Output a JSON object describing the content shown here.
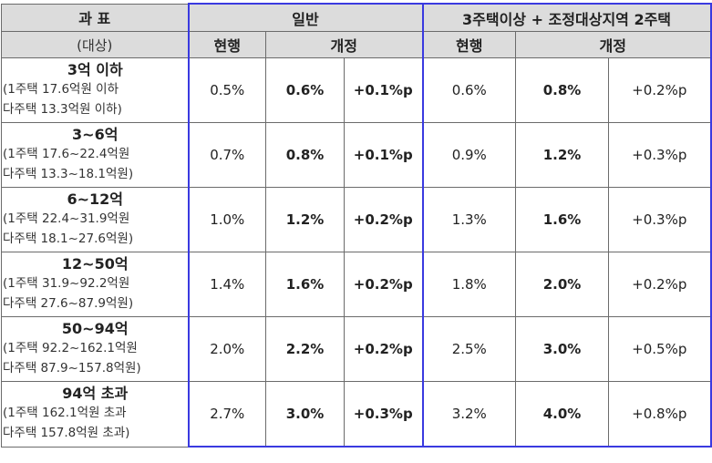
{
  "header": {
    "col_label_1": "과  표",
    "col_label_2": "(대상)",
    "general": "일반",
    "multi": "3주택이상 + 조정대상지역 2주택",
    "current": "현행",
    "revised": "개정"
  },
  "rows": [
    {
      "title": "3억 이하",
      "sub1": "(1주택 17.6억원 이하",
      "sub2": "다주택 13.3억원 이하)",
      "g_cur": "0.5%",
      "g_rev": "0.6%",
      "g_diff": "+0.1%p",
      "m_cur": "0.6%",
      "m_rev": "0.8%",
      "m_diff": "+0.2%p"
    },
    {
      "title": "3~6억",
      "sub1": "(1주택 17.6~22.4억원",
      "sub2": "다주택 13.3~18.1억원)",
      "g_cur": "0.7%",
      "g_rev": "0.8%",
      "g_diff": "+0.1%p",
      "m_cur": "0.9%",
      "m_rev": "1.2%",
      "m_diff": "+0.3%p"
    },
    {
      "title": "6~12억",
      "sub1": "(1주택 22.4~31.9억원",
      "sub2": "다주택 18.1~27.6억원)",
      "g_cur": "1.0%",
      "g_rev": "1.2%",
      "g_diff": "+0.2%p",
      "m_cur": "1.3%",
      "m_rev": "1.6%",
      "m_diff": "+0.3%p"
    },
    {
      "title": "12~50억",
      "sub1": "(1주택 31.9~92.2억원",
      "sub2": "다주택 27.6~87.9억원)",
      "g_cur": "1.4%",
      "g_rev": "1.6%",
      "g_diff": "+0.2%p",
      "m_cur": "1.8%",
      "m_rev": "2.0%",
      "m_diff": "+0.2%p"
    },
    {
      "title": "50~94억",
      "sub1": "(1주택 92.2~162.1억원",
      "sub2": "다주택 87.9~157.8억원)",
      "g_cur": "2.0%",
      "g_rev": "2.2%",
      "g_diff": "+0.2%p",
      "m_cur": "2.5%",
      "m_rev": "3.0%",
      "m_diff": "+0.5%p"
    },
    {
      "title": "94억 초과",
      "sub1": "(1주택 162.1억원 초과",
      "sub2": "다주택 157.8억원 초과)",
      "g_cur": "2.7%",
      "g_rev": "3.0%",
      "g_diff": "+0.3%p",
      "m_cur": "3.2%",
      "m_rev": "4.0%",
      "m_diff": "+0.8%p"
    }
  ]
}
